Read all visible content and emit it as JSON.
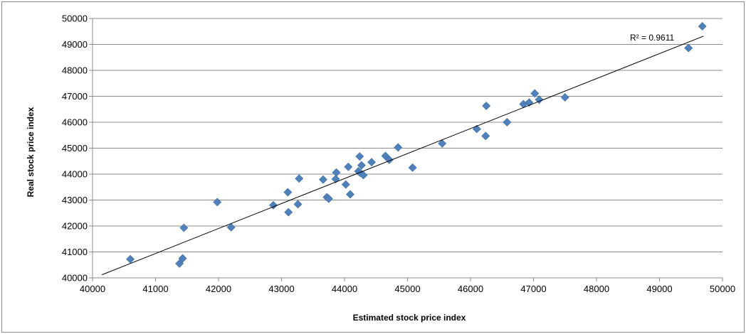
{
  "chart_data": {
    "type": "scatter",
    "xlabel": "Estimated stock price index",
    "ylabel": "Real stock price index",
    "xlim": [
      40000,
      50000
    ],
    "ylim": [
      40000,
      50000
    ],
    "xticks": [
      40000,
      41000,
      42000,
      43000,
      44000,
      45000,
      46000,
      47000,
      48000,
      49000,
      50000
    ],
    "yticks": [
      40000,
      41000,
      42000,
      43000,
      44000,
      45000,
      46000,
      47000,
      48000,
      49000,
      50000
    ],
    "grid": "horizontal",
    "marker_color": "#4F81BD",
    "trendline": {
      "type": "linear",
      "x": [
        40150,
        49700
      ],
      "y": [
        40120,
        49320
      ],
      "label": "R² = 0.9611",
      "color": "#000000"
    },
    "points": {
      "x": [
        40600,
        41380,
        41430,
        41450,
        41980,
        42200,
        42870,
        43100,
        43110,
        43260,
        43280,
        43660,
        43720,
        43750,
        43860,
        43870,
        44020,
        44060,
        44090,
        44220,
        44240,
        44250,
        44270,
        44300,
        44430,
        44650,
        44710,
        44850,
        45080,
        45550,
        46100,
        46240,
        46250,
        46580,
        46840,
        46930,
        47020,
        47090,
        47500,
        49460,
        49680
      ],
      "y": [
        40720,
        40550,
        40750,
        41930,
        42920,
        41950,
        42800,
        43300,
        42530,
        42840,
        43830,
        43790,
        43110,
        43050,
        43810,
        44060,
        43600,
        44280,
        43220,
        44110,
        44680,
        44050,
        44340,
        43960,
        44460,
        44700,
        44550,
        45030,
        44250,
        45180,
        45740,
        45470,
        46630,
        46000,
        46700,
        46760,
        47110,
        46870,
        46960,
        48860,
        49700
      ]
    }
  }
}
